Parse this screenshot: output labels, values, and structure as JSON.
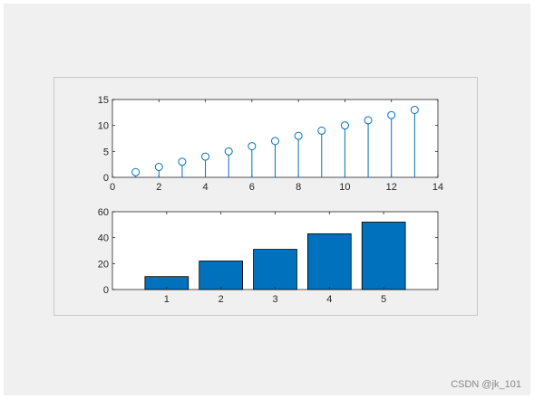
{
  "chart_data": [
    {
      "type": "stem",
      "x": [
        1,
        2,
        3,
        4,
        5,
        6,
        7,
        8,
        9,
        10,
        11,
        12,
        13
      ],
      "y": [
        1,
        2,
        3,
        4,
        5,
        6,
        7,
        8,
        9,
        10,
        11,
        12,
        13
      ],
      "xlim": [
        0,
        14
      ],
      "ylim": [
        0,
        15
      ],
      "xticks": [
        "0",
        "2",
        "4",
        "6",
        "8",
        "10",
        "12",
        "14"
      ],
      "yticks": [
        "0",
        "5",
        "10",
        "15"
      ],
      "marker": "circle",
      "color": "#0072bd",
      "grid": false
    },
    {
      "type": "bar",
      "categories": [
        "1",
        "2",
        "3",
        "4",
        "5"
      ],
      "values": [
        10,
        22,
        31,
        43,
        52
      ],
      "xlim": [
        0,
        6
      ],
      "ylim": [
        0,
        60
      ],
      "yticks": [
        "0",
        "20",
        "40",
        "60"
      ],
      "color": "#0072bd",
      "grid": false
    }
  ],
  "watermark": "CSDN @jk_101"
}
